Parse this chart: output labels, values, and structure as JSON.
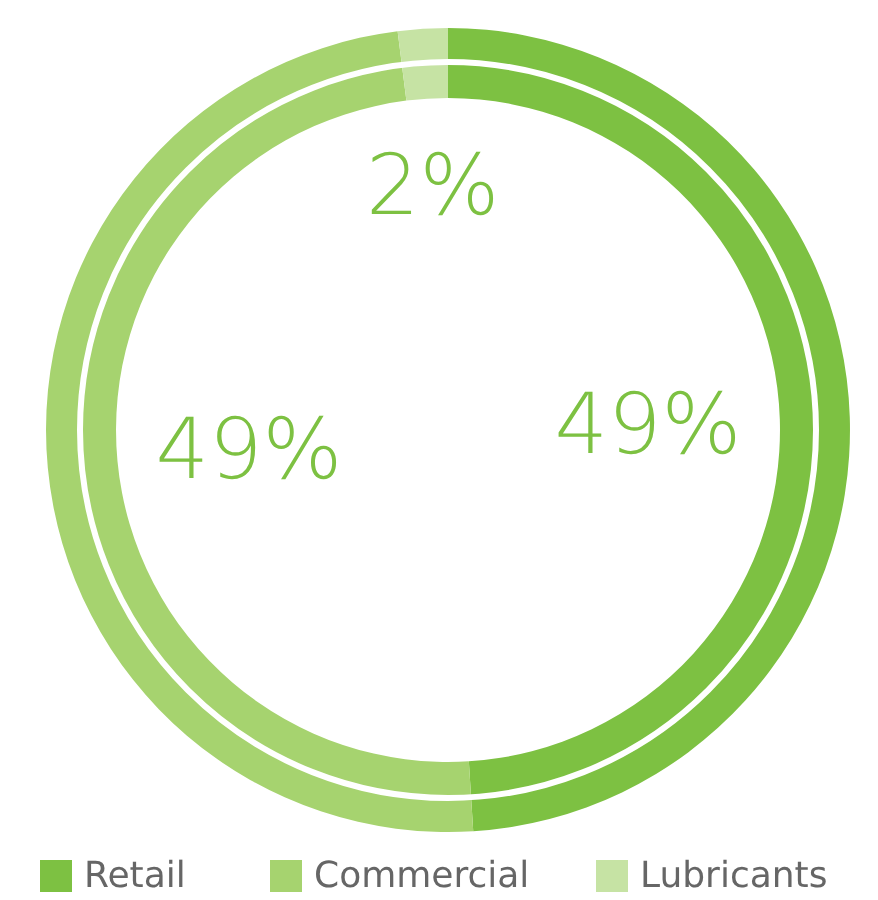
{
  "chart_data": {
    "type": "donut",
    "categories": [
      "Retail",
      "Commercial",
      "Lubricants"
    ],
    "values": [
      49,
      49,
      2
    ],
    "colors": [
      "#7dc142",
      "#a6d36f",
      "#c6e3a4"
    ],
    "value_labels": [
      "49%",
      "49%",
      "2%"
    ],
    "legend": "bottom"
  }
}
